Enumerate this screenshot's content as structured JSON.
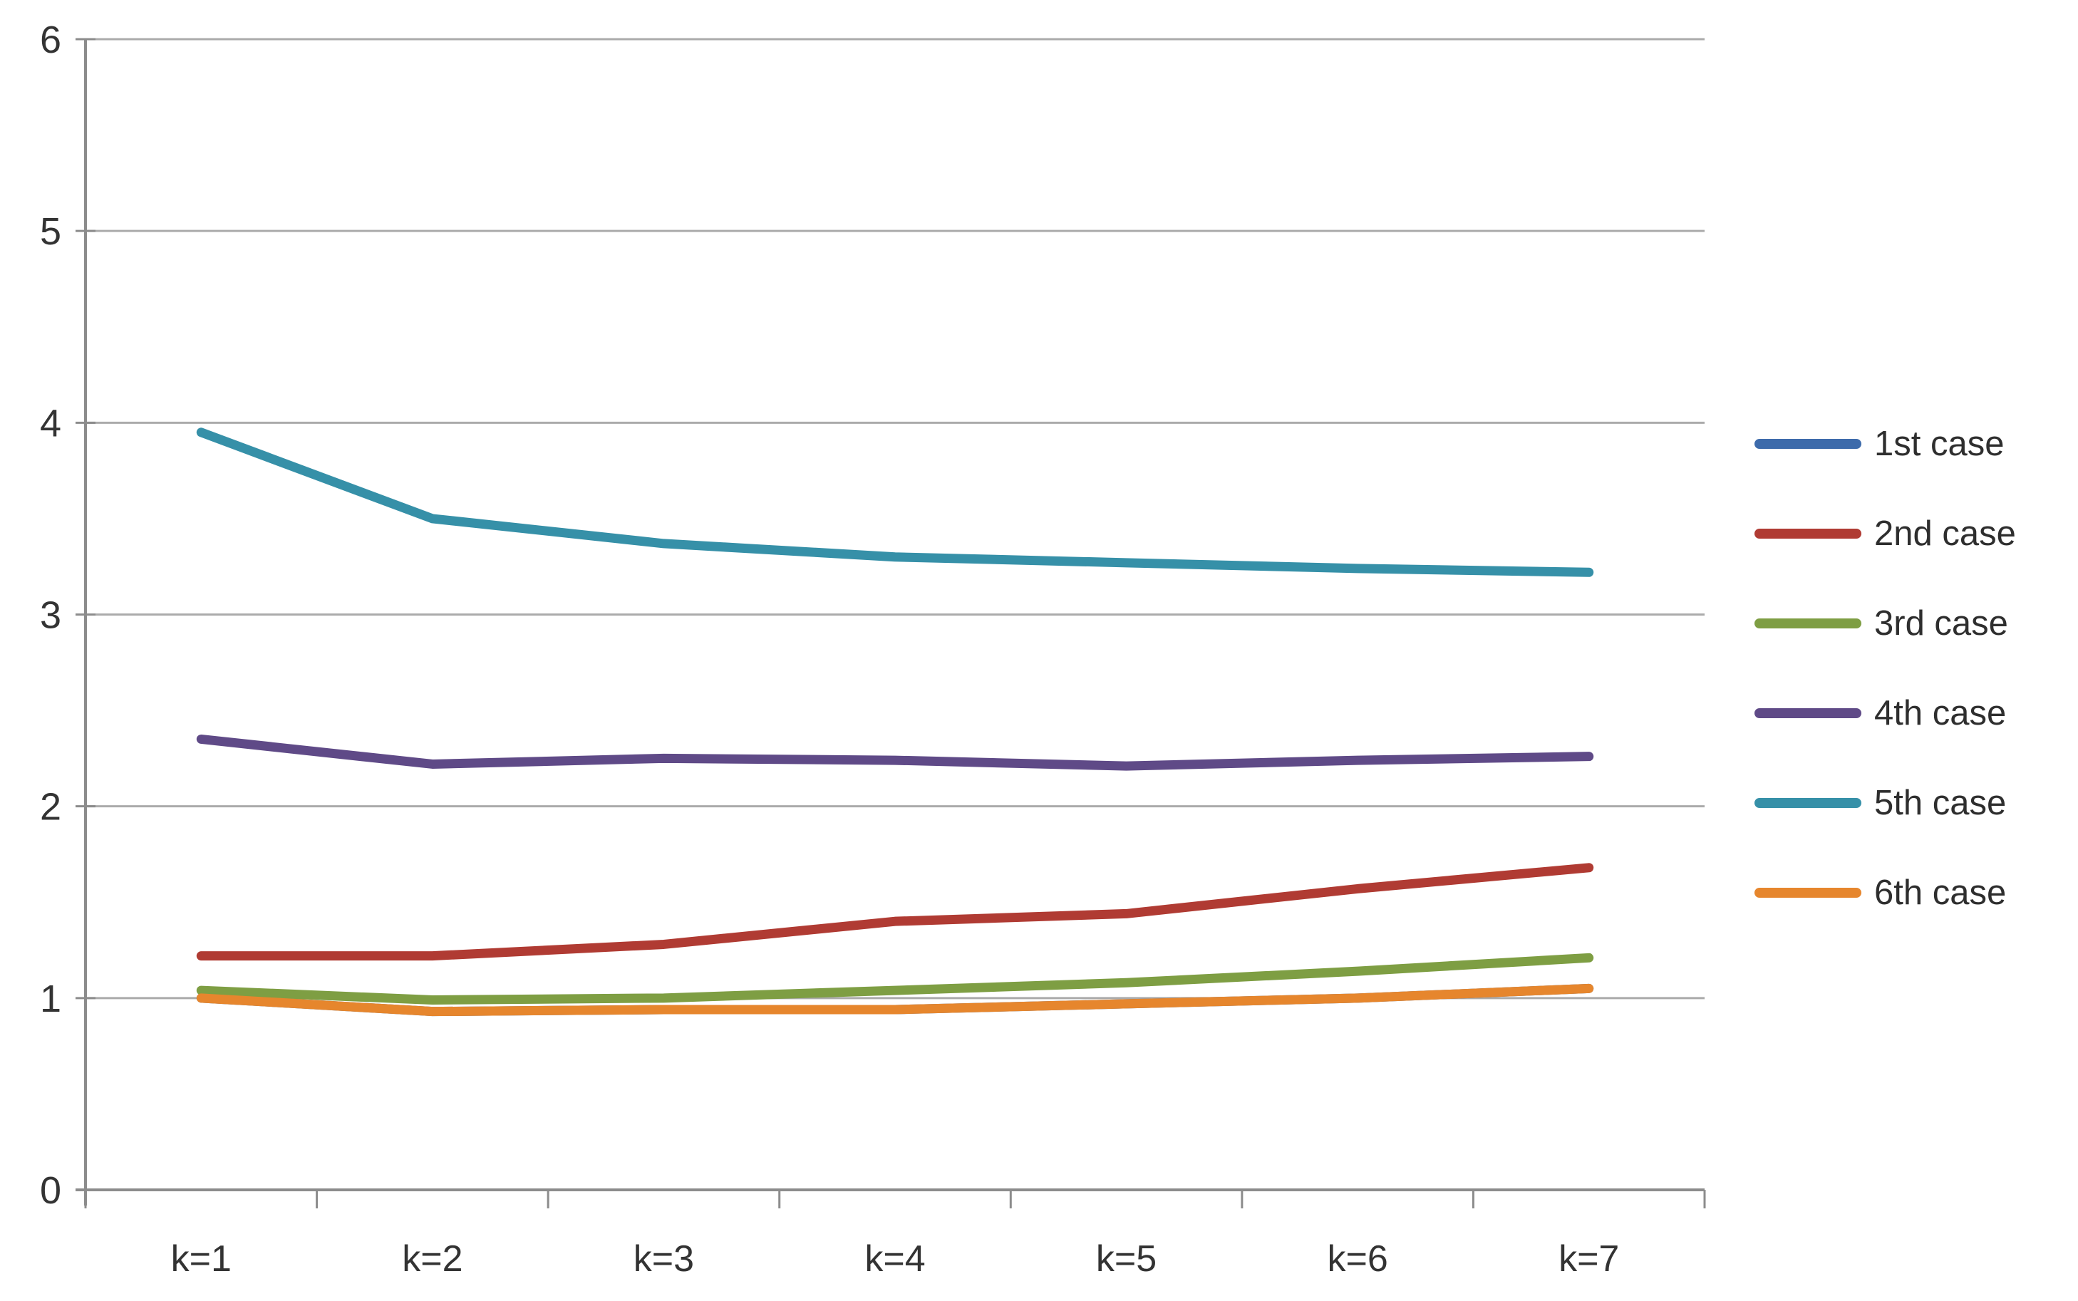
{
  "chart_data": {
    "type": "line",
    "title": "",
    "xlabel": "",
    "ylabel": "",
    "categories": [
      "k=1",
      "k=2",
      "k=3",
      "k=4",
      "k=5",
      "k=6",
      "k=7"
    ],
    "y_axis": {
      "min": 0,
      "max": 6,
      "step": 1,
      "tick_labels": [
        "0",
        "1",
        "2",
        "3",
        "4",
        "5",
        "6"
      ]
    },
    "grid": true,
    "legend_position": "right",
    "series": [
      {
        "name": "1st case",
        "color": "#3d6bab",
        "values": [
          1.0,
          0.93,
          0.94,
          0.94,
          0.97,
          1.0,
          1.05
        ],
        "visibility_note": "coincides with 6th case line and is hidden beneath it in the plot"
      },
      {
        "name": "2nd case",
        "color": "#b03b33",
        "values": [
          1.22,
          1.22,
          1.28,
          1.4,
          1.44,
          1.57,
          1.68
        ]
      },
      {
        "name": "3rd case",
        "color": "#7e9e43",
        "values": [
          1.04,
          0.99,
          1.0,
          1.04,
          1.08,
          1.14,
          1.21
        ]
      },
      {
        "name": "4th case",
        "color": "#5f4a87",
        "values": [
          2.35,
          2.22,
          2.25,
          2.24,
          2.21,
          2.24,
          2.26
        ]
      },
      {
        "name": "5th case",
        "color": "#3690a8",
        "values": [
          3.95,
          3.5,
          3.37,
          3.3,
          3.27,
          3.24,
          3.22
        ]
      },
      {
        "name": "6th case",
        "color": "#e6862d",
        "values": [
          1.0,
          0.93,
          0.94,
          0.94,
          0.97,
          1.0,
          1.05
        ]
      }
    ],
    "colors": {
      "gridline": "#ababab",
      "axis": "#8c8c8c",
      "tick_text": "#333333",
      "legend_text": "#2e2e2e",
      "background": "#ffffff"
    }
  },
  "legend": {
    "items": [
      {
        "label": "1st case",
        "color": "#3d6bab"
      },
      {
        "label": "2nd case",
        "color": "#b03b33"
      },
      {
        "label": "3rd case",
        "color": "#7e9e43"
      },
      {
        "label": "4th case",
        "color": "#5f4a87"
      },
      {
        "label": "5th case",
        "color": "#3690a8"
      },
      {
        "label": "6th case",
        "color": "#e6862d"
      }
    ]
  }
}
